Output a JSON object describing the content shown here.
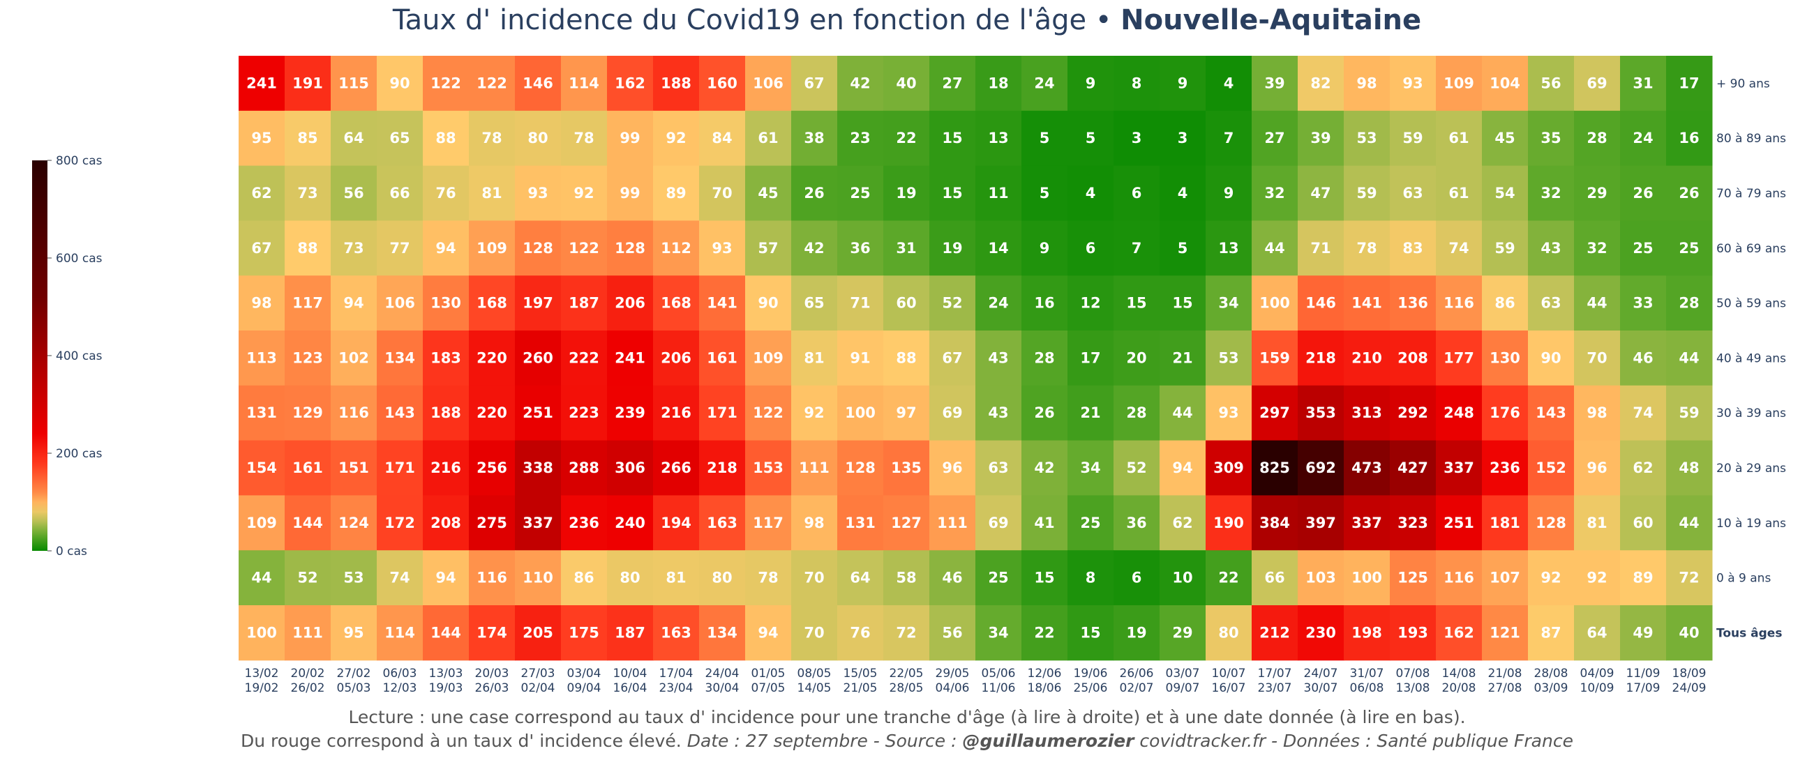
{
  "title": {
    "main": "Taux d' incidence du Covid19 en fonction de l'âge • ",
    "region": "Nouvelle-Aquitaine"
  },
  "footer": {
    "line1": "Lecture : une case correspond au taux d' incidence pour une tranche d'âge (à lire à droite) et à une date donnée (à lire en bas).",
    "line2_a": "Du rouge correspond à un taux d' incidence élevé.  ",
    "line2_date": "Date : 27 septembre - Source : ",
    "line2_handle": "@guillaumerozier",
    "line2_rest": " covidtracker.fr - Données : Santé publique France"
  },
  "chart_data": {
    "type": "heatmap",
    "title": "Taux d' incidence du Covid19 en fonction de l'âge • Nouvelle-Aquitaine",
    "x": [
      "13/02 19/02",
      "20/02 26/02",
      "27/02 05/03",
      "06/03 12/03",
      "13/03 19/03",
      "20/03 26/03",
      "27/03 02/04",
      "03/04 09/04",
      "10/04 16/04",
      "17/04 23/04",
      "24/04 30/04",
      "01/05 07/05",
      "08/05 14/05",
      "15/05 21/05",
      "22/05 28/05",
      "29/05 04/06",
      "05/06 11/06",
      "12/06 18/06",
      "19/06 25/06",
      "26/06 02/07",
      "03/07 09/07",
      "10/07 16/07",
      "17/07 23/07",
      "24/07 30/07",
      "31/07 06/08",
      "07/08 13/08",
      "14/08 20/08",
      "21/08 27/08",
      "28/08 03/09",
      "04/09 10/09",
      "11/09 17/09",
      "18/09 24/09"
    ],
    "y": [
      "+ 90 ans",
      "80 à 89 ans",
      "70 à 79 ans",
      "60 à 69 ans",
      "50 à 59 ans",
      "40 à 49 ans",
      "30 à 39 ans",
      "20 à 29 ans",
      "10 à 19 ans",
      "0 à 9 ans",
      "Tous âges"
    ],
    "z": [
      [
        241,
        191,
        115,
        90,
        122,
        122,
        146,
        114,
        162,
        188,
        160,
        106,
        67,
        42,
        40,
        27,
        18,
        24,
        9,
        8,
        9,
        4,
        39,
        82,
        98,
        93,
        109,
        104,
        56,
        69,
        31,
        17
      ],
      [
        95,
        85,
        64,
        65,
        88,
        78,
        80,
        78,
        99,
        92,
        84,
        61,
        38,
        23,
        22,
        15,
        13,
        5,
        5,
        3,
        3,
        7,
        27,
        39,
        53,
        59,
        61,
        45,
        35,
        28,
        24,
        16
      ],
      [
        62,
        73,
        56,
        66,
        76,
        81,
        93,
        92,
        99,
        89,
        70,
        45,
        26,
        25,
        19,
        15,
        11,
        5,
        4,
        6,
        4,
        9,
        32,
        47,
        59,
        63,
        61,
        54,
        32,
        29,
        26,
        26
      ],
      [
        67,
        88,
        73,
        77,
        94,
        109,
        128,
        122,
        128,
        112,
        93,
        57,
        42,
        36,
        31,
        19,
        14,
        9,
        6,
        7,
        5,
        13,
        44,
        71,
        78,
        83,
        74,
        59,
        43,
        32,
        25,
        25
      ],
      [
        98,
        117,
        94,
        106,
        130,
        168,
        197,
        187,
        206,
        168,
        141,
        90,
        65,
        71,
        60,
        52,
        24,
        16,
        12,
        15,
        15,
        34,
        100,
        146,
        141,
        136,
        116,
        86,
        63,
        44,
        33,
        28
      ],
      [
        113,
        123,
        102,
        134,
        183,
        220,
        260,
        222,
        241,
        206,
        161,
        109,
        81,
        91,
        88,
        67,
        43,
        28,
        17,
        20,
        21,
        53,
        159,
        218,
        210,
        208,
        177,
        130,
        90,
        70,
        46,
        44
      ],
      [
        131,
        129,
        116,
        143,
        188,
        220,
        251,
        223,
        239,
        216,
        171,
        122,
        92,
        100,
        97,
        69,
        43,
        26,
        21,
        28,
        44,
        93,
        297,
        353,
        313,
        292,
        248,
        176,
        143,
        98,
        74,
        59
      ],
      [
        154,
        161,
        151,
        171,
        216,
        256,
        338,
        288,
        306,
        266,
        218,
        153,
        111,
        128,
        135,
        96,
        63,
        42,
        34,
        52,
        94,
        309,
        825,
        692,
        473,
        427,
        337,
        236,
        152,
        96,
        62,
        48
      ],
      [
        109,
        144,
        124,
        172,
        208,
        275,
        337,
        236,
        240,
        194,
        163,
        117,
        98,
        131,
        127,
        111,
        69,
        41,
        25,
        36,
        62,
        190,
        384,
        397,
        337,
        323,
        251,
        181,
        128,
        81,
        60,
        44
      ],
      [
        44,
        52,
        53,
        74,
        94,
        116,
        110,
        86,
        80,
        81,
        80,
        78,
        70,
        64,
        58,
        46,
        25,
        15,
        8,
        6,
        10,
        22,
        66,
        103,
        100,
        125,
        116,
        107,
        92,
        92,
        89,
        72
      ],
      [
        100,
        111,
        95,
        114,
        144,
        174,
        205,
        175,
        187,
        163,
        134,
        94,
        70,
        76,
        72,
        56,
        34,
        22,
        15,
        19,
        29,
        80,
        212,
        230,
        198,
        193,
        162,
        121,
        87,
        64,
        49,
        40
      ]
    ],
    "zmin": 0,
    "zmax": 800,
    "colorbar": {
      "ticks": [
        0,
        200,
        400,
        600,
        800
      ],
      "tick_labels": [
        "0 cas",
        "200 cas",
        "400 cas",
        "600 cas",
        "800 cas"
      ]
    },
    "colorscale": [
      "#078a00",
      "#5fa92a",
      "#c4c35a",
      "#ffcb6b",
      "#ff8a46",
      "#ff3c1f",
      "#ee0000",
      "#b80000",
      "#700000",
      "#2a0000"
    ]
  }
}
